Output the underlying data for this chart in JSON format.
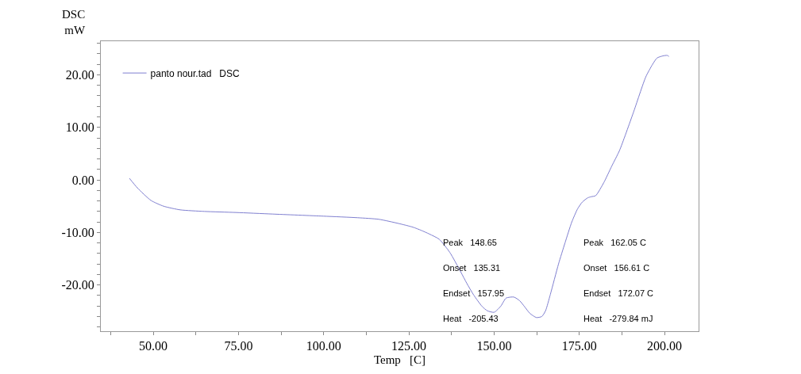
{
  "chart_data": {
    "type": "line",
    "xlabel": "Temp   [C]",
    "ylabel": "DSC mW",
    "legend": "top left",
    "grid": false,
    "marker": "none",
    "line_style": "solid",
    "series": [
      {
        "name": "panto nour.tad   DSC",
        "color": "#7f7fd0",
        "x": [
          43,
          45.3,
          49.3,
          53,
          57.9,
          65,
          74.2,
          85,
          99.9,
          110,
          116.2,
          122,
          126.2,
          128.6,
          131,
          133.9,
          137,
          140.2,
          142,
          144,
          146.5,
          148,
          150,
          152,
          153.5,
          155.8,
          157.5,
          158.9,
          160.5,
          162.4,
          164,
          165.1,
          166.5,
          168.9,
          170.8,
          172.8,
          174.5,
          175.9,
          177.5,
          178.5,
          179.8,
          182.2,
          184.5,
          186.8,
          190.8,
          194.5,
          196.5,
          197.8,
          199.5,
          200.8,
          201.3
        ],
        "values": [
          0.3,
          -1.5,
          -3.9,
          -5,
          -5.7,
          -6,
          -6.2,
          -6.5,
          -6.9,
          -7.2,
          -7.5,
          -8.3,
          -9.0,
          -9.6,
          -10.3,
          -11.3,
          -13.8,
          -17.5,
          -19.7,
          -21.9,
          -24.1,
          -24.9,
          -25.2,
          -24,
          -22.5,
          -22.3,
          -23,
          -24.1,
          -25.4,
          -26.2,
          -26,
          -24.9,
          -21.8,
          -16,
          -12,
          -8,
          -5.5,
          -4.2,
          -3.4,
          -3.2,
          -3.0,
          -0.5,
          2.6,
          5.6,
          12.7,
          19.6,
          22,
          23.2,
          23.6,
          23.7,
          23.5
        ]
      }
    ],
    "xlim": [
      34.6,
      210
    ],
    "xticks": [
      {
        "value": 37.5,
        "label": null
      },
      {
        "value": 50,
        "label": "50.00"
      },
      {
        "value": 62.5,
        "label": null
      },
      {
        "value": 75,
        "label": "75.00"
      },
      {
        "value": 87.5,
        "label": null
      },
      {
        "value": 100,
        "label": "100.00"
      },
      {
        "value": 112.5,
        "label": null
      },
      {
        "value": 125,
        "label": "125.00"
      },
      {
        "value": 137.5,
        "label": null
      },
      {
        "value": 150,
        "label": "150.00"
      },
      {
        "value": 162.5,
        "label": null
      },
      {
        "value": 175,
        "label": "175.00"
      },
      {
        "value": 187.5,
        "label": null
      },
      {
        "value": 200,
        "label": "200.00"
      }
    ],
    "ylim": [
      -28.8,
      26.4
    ],
    "yticks": [
      {
        "value": -28,
        "label": null
      },
      {
        "value": -26,
        "label": null
      },
      {
        "value": -24,
        "label": null
      },
      {
        "value": -22,
        "label": null
      },
      {
        "value": -20,
        "label": "-20.00"
      },
      {
        "value": -18,
        "label": null
      },
      {
        "value": -16,
        "label": null
      },
      {
        "value": -14,
        "label": null
      },
      {
        "value": -12,
        "label": null
      },
      {
        "value": -10,
        "label": "-10.00"
      },
      {
        "value": -8,
        "label": null
      },
      {
        "value": -6,
        "label": null
      },
      {
        "value": -4,
        "label": null
      },
      {
        "value": -2,
        "label": null
      },
      {
        "value": 0,
        "label": "0.00"
      },
      {
        "value": 2,
        "label": null
      },
      {
        "value": 4,
        "label": null
      },
      {
        "value": 6,
        "label": null
      },
      {
        "value": 8,
        "label": null
      },
      {
        "value": 10,
        "label": "10.00"
      },
      {
        "value": 12,
        "label": null
      },
      {
        "value": 14,
        "label": null
      },
      {
        "value": 16,
        "label": null
      },
      {
        "value": 18,
        "label": null
      },
      {
        "value": 20,
        "label": "20.00"
      },
      {
        "value": 22,
        "label": null
      },
      {
        "value": 24,
        "label": null
      },
      {
        "value": 26,
        "label": null
      }
    ],
    "annotations": [
      "Peak  148.65",
      "Onset  135.31",
      "Endset  157.95",
      "Heat  -205.43",
      "Peak  162.05 C",
      "Onset  156.61 C",
      "Endset  172.07 C",
      "Heat  -279.84 mJ"
    ]
  }
}
